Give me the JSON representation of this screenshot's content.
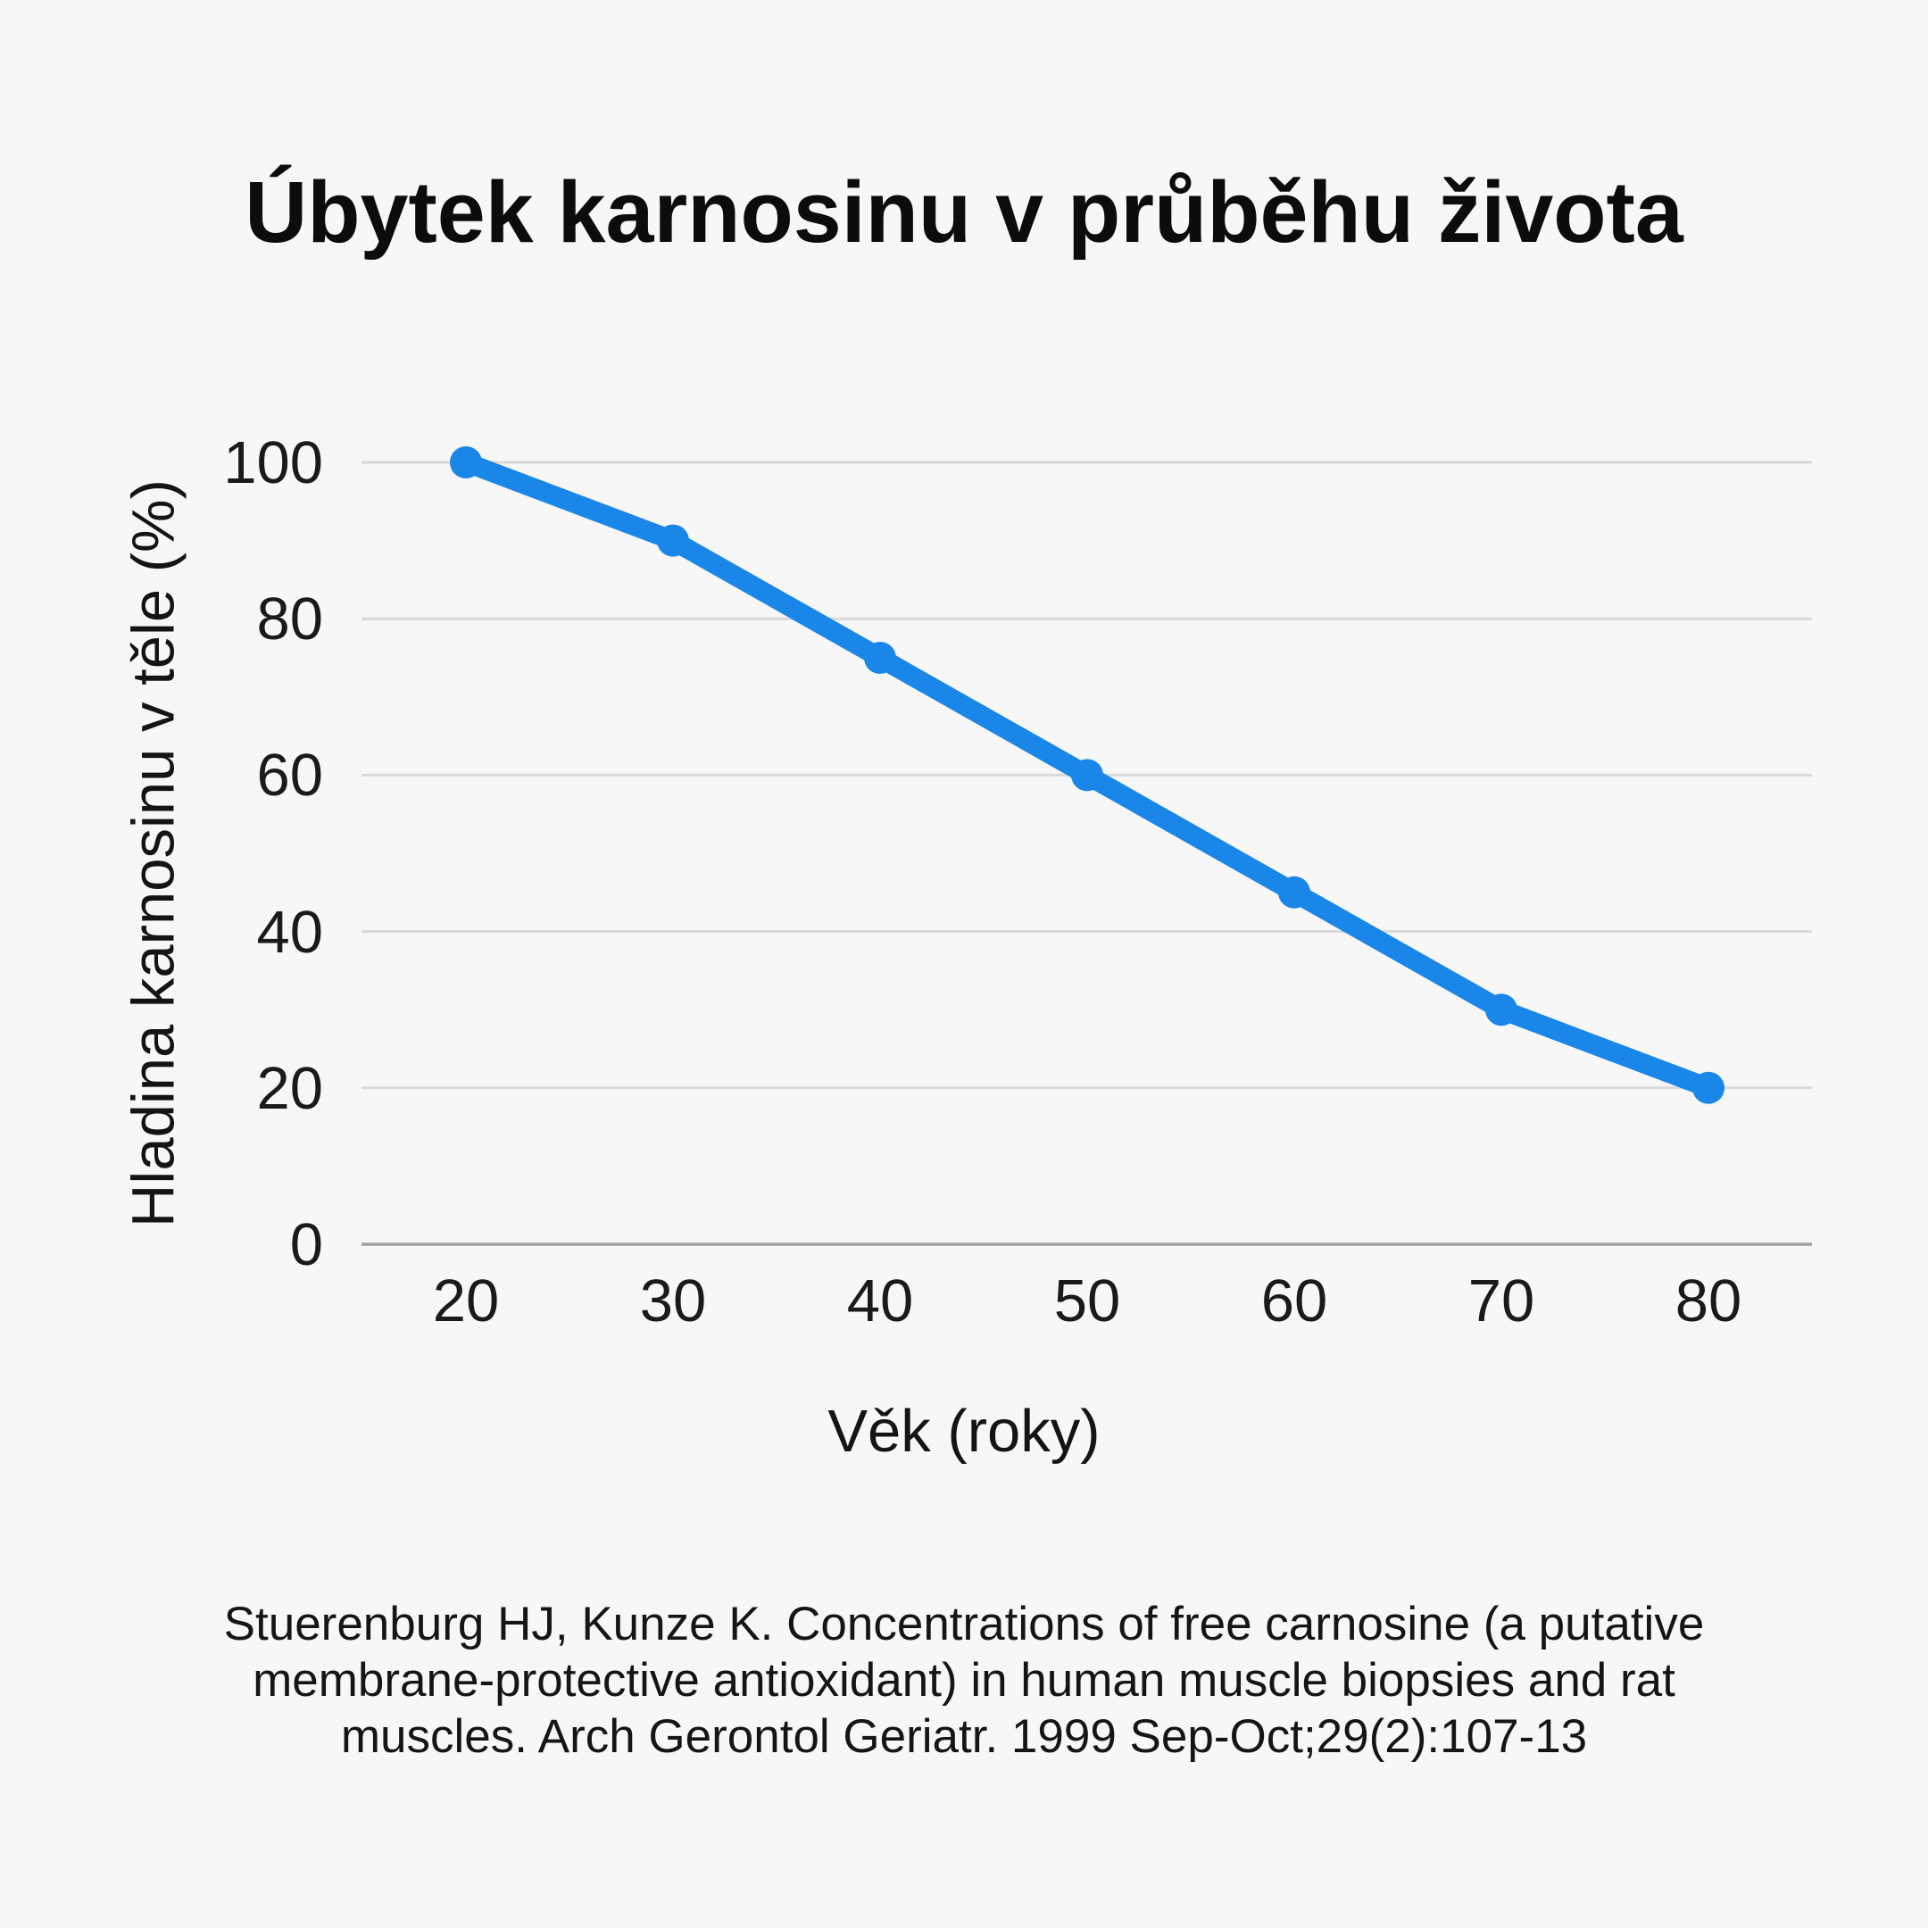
{
  "colors": {
    "background": "#f7f7f7",
    "line": "#1a86e8",
    "marker": "#1a86e8",
    "grid": "#d9d9d9",
    "axis": "#a0a0a0",
    "text": "#141414"
  },
  "chart_data": {
    "type": "line",
    "title": "Úbytek karnosinu v průběhu života",
    "x": [
      20,
      30,
      40,
      50,
      60,
      70,
      80
    ],
    "values": [
      100,
      90,
      75,
      60,
      45,
      30,
      20
    ],
    "series_name": "Hladina karnosinu",
    "xlabel": "Věk (roky)",
    "ylabel": "Hladina karnosinu v těle (%)",
    "ylim": [
      0,
      100
    ],
    "y_ticks": [
      0,
      20,
      40,
      60,
      80,
      100
    ],
    "x_ticks": [
      20,
      30,
      40,
      50,
      60,
      70,
      80
    ],
    "grid": "horizontal-only",
    "legend": "none",
    "marker": "circle"
  },
  "citation": {
    "lines": [
      "Stuerenburg HJ, Kunze K. Concentrations of free carnosine (a putative",
      "membrane-protective antioxidant) in human muscle biopsies and rat",
      "muscles. Arch Gerontol Geriatr. 1999 Sep-Oct;29(2):107-13"
    ]
  }
}
